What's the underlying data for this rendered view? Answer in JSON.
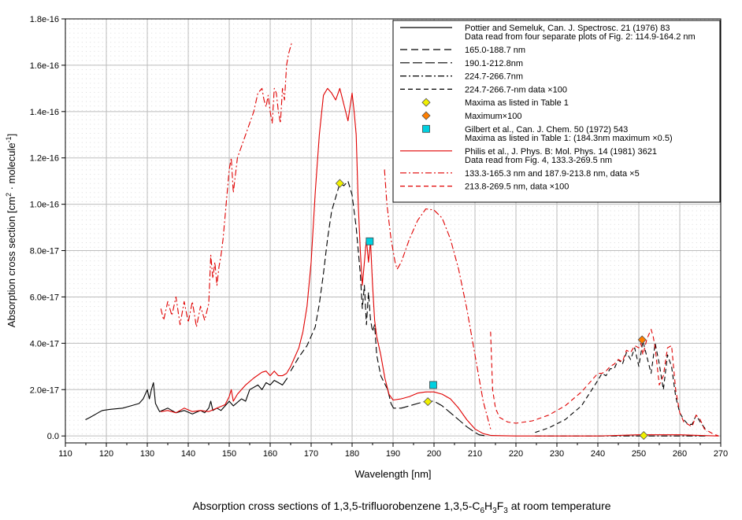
{
  "chart_data": {
    "type": "line",
    "caption": {
      "prefix": "Absorption cross sections of 1,3,5-trifluorobenzene 1,3,5-C",
      "sub1": "6",
      "mid1": "H",
      "sub2": "3",
      "mid2": "F",
      "sub3": "3",
      "suffix": " at room temperature"
    },
    "xlabel": "Wavelength [nm]",
    "ylabel": {
      "prefix": "Absorption cross section [cm",
      "sup1": "2",
      "mid": " · molecule",
      "sup2": "-1",
      "suffix": "]"
    },
    "xlim": [
      110,
      270
    ],
    "ylim": [
      -3e-18,
      1.8e-16
    ],
    "x_ticks": [
      110,
      120,
      130,
      140,
      150,
      160,
      170,
      180,
      190,
      200,
      210,
      220,
      230,
      240,
      250,
      260,
      270
    ],
    "y_ticks": [
      {
        "value": 0,
        "label": "0.0"
      },
      {
        "value": 2e-17,
        "label": "2.0e-17"
      },
      {
        "value": 4e-17,
        "label": "4.0e-17"
      },
      {
        "value": 6e-17,
        "label": "6.0e-17"
      },
      {
        "value": 8e-17,
        "label": "8.0e-17"
      },
      {
        "value": 1e-16,
        "label": "1.0e-16"
      },
      {
        "value": 1.2e-16,
        "label": "1.2e-16"
      },
      {
        "value": 1.4e-16,
        "label": "1.4e-16"
      },
      {
        "value": 1.6e-16,
        "label": "1.6e-16"
      },
      {
        "value": 1.8e-16,
        "label": "1.8e-16"
      }
    ],
    "grid": true,
    "legend": [
      {
        "type": "line",
        "color": "#000000",
        "dash": "",
        "lines": [
          "Pottier and Semeluk, Can. J. Spectrosc. 21 (1976) 83",
          "Data read from four separate plots of Fig. 2: 114.9-164.2 nm"
        ]
      },
      {
        "type": "line",
        "color": "#000000",
        "dash": "9,5",
        "lines": [
          "165.0-188.7 nm"
        ]
      },
      {
        "type": "line",
        "color": "#000000",
        "dash": "12,4",
        "lines": [
          "190.1-212.8nm"
        ]
      },
      {
        "type": "line",
        "color": "#000000",
        "dash": "8,3,2,3",
        "lines": [
          "224.7-266.7nm"
        ]
      },
      {
        "type": "line",
        "color": "#000000",
        "dash": "6,4",
        "lines": [
          "224.7-266.7-nm data ×100"
        ]
      },
      {
        "type": "marker",
        "color": "#f0f000",
        "shape": "diamond",
        "lines": [
          "Maxima as listed in Table 1"
        ]
      },
      {
        "type": "marker",
        "color": "#ff7f00",
        "shape": "diamond",
        "lines": [
          "Maximum×100"
        ]
      },
      {
        "type": "marker",
        "color": "#00d0e0",
        "shape": "square",
        "lines": [
          "Gilbert et al., Can. J. Chem. 50 (1972) 543",
          "Maxima as listed in Table 1: (184.3nm maximum ×0.5)"
        ]
      },
      {
        "type": "line",
        "color": "#e00000",
        "dash": "",
        "lines": [
          "Philis et al., J. Phys. B: Mol. Phys. 14 (1981) 3621",
          "Data read from Fig. 4, 133.3-269.5 nm"
        ]
      },
      {
        "type": "line",
        "color": "#e00000",
        "dash": "8,3,2,3",
        "lines": [
          "133.3-165.3 nm and 187.9-213.8 nm, data ×5"
        ]
      },
      {
        "type": "line",
        "color": "#e00000",
        "dash": "6,4",
        "lines": [
          "213.8-269.5 nm, data ×100"
        ]
      }
    ],
    "series": [
      {
        "name": "Pottier 114.9-164.2 nm",
        "color": "#000000",
        "dash": "",
        "unit": 1e-17,
        "x": [
          114.9,
          116,
          118,
          119,
          121,
          124,
          126,
          128,
          129,
          130,
          130.5,
          131,
          131.5,
          132,
          133,
          135,
          137,
          139,
          141,
          143,
          144,
          145,
          145.5,
          146,
          147,
          148,
          149,
          150,
          151,
          153,
          154,
          155,
          157,
          158,
          159,
          160,
          161,
          162,
          163,
          164.2
        ],
        "y": [
          0.7,
          0.8,
          1.0,
          1.1,
          1.15,
          1.2,
          1.3,
          1.4,
          1.6,
          2.0,
          1.6,
          2.0,
          2.3,
          1.4,
          1.05,
          1.2,
          1.0,
          1.1,
          0.95,
          1.1,
          1.0,
          1.2,
          1.5,
          1.1,
          1.2,
          1.1,
          1.3,
          1.5,
          1.3,
          1.6,
          1.5,
          2.0,
          2.2,
          2.0,
          2.3,
          2.2,
          2.4,
          2.3,
          2.2,
          2.5
        ]
      },
      {
        "name": "Pottier 165.0-188.7 nm",
        "color": "#000000",
        "dash": "8,4",
        "unit": 1e-17,
        "x": [
          165,
          167,
          169,
          171,
          172,
          173,
          174,
          175,
          176,
          177,
          178,
          179,
          180,
          181,
          182,
          182.5,
          183,
          183.5,
          184,
          184.5,
          185,
          185.5,
          186,
          187,
          188.7
        ],
        "y": [
          2.8,
          3.4,
          3.9,
          4.7,
          5.7,
          7.0,
          8.5,
          9.7,
          10.3,
          10.9,
          10.8,
          11.0,
          10.4,
          9.0,
          7.0,
          5.5,
          6.5,
          4.8,
          6.2,
          5.0,
          4.5,
          4.8,
          3.5,
          2.6,
          2.0
        ]
      },
      {
        "name": "Pottier 190.1-212.8 nm",
        "color": "#000000",
        "dash": "12,4",
        "unit": 1e-17,
        "x": [
          188.7,
          189.5,
          190.1,
          192,
          194,
          196,
          198,
          200,
          202,
          204,
          206,
          208,
          210,
          211,
          212.8
        ],
        "y": [
          2.0,
          1.4,
          1.2,
          1.2,
          1.3,
          1.4,
          1.5,
          1.5,
          1.3,
          1.0,
          0.7,
          0.4,
          0.15,
          0.05,
          0.0
        ]
      },
      {
        "name": "Pottier 224.7-266.7 nm ×100",
        "color": "#000000",
        "dash": "6,4",
        "unit": 1e-17,
        "x": [
          224.7,
          228,
          232,
          236,
          240,
          241,
          242,
          243,
          244,
          245,
          246,
          247,
          248,
          249,
          250,
          251,
          252,
          253,
          254,
          255,
          256,
          257,
          258,
          259,
          260,
          261,
          262,
          263,
          264,
          265,
          266.7
        ],
        "y": [
          0.15,
          0.35,
          0.7,
          1.3,
          2.4,
          2.7,
          2.6,
          2.9,
          2.9,
          3.3,
          3.1,
          3.6,
          3.3,
          3.8,
          3.0,
          4.1,
          3.4,
          2.7,
          4.0,
          3.1,
          2.0,
          3.5,
          3.0,
          1.7,
          1.0,
          0.7,
          0.5,
          0.5,
          0.9,
          0.6,
          0.2
        ]
      },
      {
        "name": "Pottier 224.7-266.7 nm",
        "color": "#000000",
        "dash": "8,3,2,3",
        "unit": 1e-17,
        "x": [
          224.7,
          240,
          250,
          260,
          266.7
        ],
        "y": [
          0,
          0,
          0,
          0,
          0
        ]
      },
      {
        "name": "Philis 133.3-269.5 nm",
        "color": "#e00000",
        "dash": "",
        "unit": 1e-17,
        "x": [
          133.3,
          135,
          137,
          139,
          141,
          143,
          145,
          147,
          149,
          150,
          150.5,
          151,
          152,
          154,
          156,
          158,
          159,
          160,
          161,
          162,
          163,
          164,
          165,
          166,
          167,
          168,
          169,
          170,
          171,
          172,
          173,
          174,
          175,
          176,
          177,
          178,
          179,
          180,
          180.5,
          181,
          181.5,
          182,
          182.5,
          183,
          183.5,
          184,
          184.5,
          185,
          185.5,
          186,
          187,
          188,
          189,
          190,
          192,
          194,
          196,
          198,
          200,
          202,
          204,
          206,
          208,
          210,
          212,
          214,
          220,
          230,
          240,
          250,
          260,
          269.5
        ],
        "y": [
          1.05,
          1.1,
          1.0,
          1.2,
          1.05,
          1.1,
          1.05,
          1.2,
          1.35,
          1.7,
          2.0,
          1.5,
          1.8,
          2.2,
          2.5,
          2.75,
          2.8,
          2.6,
          2.8,
          2.6,
          2.6,
          2.7,
          3.0,
          3.4,
          3.8,
          4.5,
          5.6,
          7.5,
          10.5,
          13.0,
          14.7,
          15.0,
          14.8,
          14.5,
          15.0,
          14.3,
          13.6,
          14.8,
          14.0,
          13.0,
          10.0,
          8.0,
          6.5,
          7.5,
          8.5,
          7.5,
          8.4,
          6.5,
          5.0,
          4.3,
          3.5,
          2.5,
          1.8,
          1.55,
          1.6,
          1.7,
          1.85,
          1.9,
          1.9,
          1.8,
          1.6,
          1.2,
          0.7,
          0.3,
          0.1,
          0.02,
          0.0,
          0.0,
          0.0,
          0.05,
          0.05,
          0.0
        ]
      },
      {
        "name": "Philis ×5 133.3-165.3 nm",
        "color": "#e00000",
        "dash": "8,3,2,3",
        "unit": 1e-17,
        "x": [
          133.3,
          134,
          135,
          136,
          137,
          138,
          139,
          140,
          141,
          142,
          143,
          144,
          145,
          145.5,
          146,
          146.5,
          147,
          147.5,
          148,
          148.5,
          149,
          149.5,
          150,
          150.5,
          151,
          152,
          153,
          154,
          155,
          156,
          157,
          158,
          158.5,
          159,
          159.5,
          160,
          160.5,
          161,
          161.5,
          162,
          162.5,
          163,
          163.5,
          164,
          164.5,
          165.3
        ],
        "y": [
          5.5,
          5.0,
          5.8,
          5.2,
          6.0,
          4.8,
          5.8,
          4.9,
          5.8,
          4.7,
          5.6,
          5.0,
          5.7,
          7.8,
          6.8,
          7.5,
          6.5,
          7.3,
          7.8,
          8.5,
          9.5,
          10.5,
          11.5,
          12.0,
          10.5,
          12.0,
          12.5,
          13.0,
          13.5,
          14.0,
          14.8,
          15.0,
          14.5,
          14.2,
          14.7,
          14.0,
          13.5,
          15.0,
          14.8,
          14.0,
          13.5,
          15.0,
          14.5,
          16.0,
          16.5,
          17.0
        ]
      },
      {
        "name": "Philis ×5 187.9-213.8 nm",
        "color": "#e00000",
        "dash": "8,3,2,3",
        "unit": 1e-17,
        "x": [
          187.9,
          188.5,
          189.5,
          190.5,
          191,
          192,
          194,
          196,
          198,
          200,
          202,
          204,
          206,
          208,
          210,
          212,
          213.8
        ],
        "y": [
          11.5,
          10.0,
          8.5,
          7.5,
          7.2,
          7.5,
          8.5,
          9.3,
          9.8,
          9.75,
          9.4,
          8.5,
          7.2,
          5.5,
          3.5,
          1.5,
          0.3
        ]
      },
      {
        "name": "Philis ×100 213.8-269.5 nm",
        "color": "#e00000",
        "dash": "6,4",
        "unit": 1e-17,
        "x": [
          213.8,
          214.3,
          215,
          216,
          218,
          220,
          224,
          228,
          232,
          236,
          240,
          241,
          242,
          243,
          244,
          245,
          246,
          247,
          248,
          249,
          250,
          250.5,
          251,
          252,
          253,
          253.5,
          254,
          255,
          256,
          257,
          258,
          259,
          260,
          261,
          262,
          263,
          264,
          265,
          266,
          268,
          269.5
        ],
        "y": [
          4.5,
          2.0,
          1.2,
          0.8,
          0.6,
          0.55,
          0.65,
          0.9,
          1.3,
          1.9,
          2.7,
          2.7,
          2.8,
          3.0,
          3.1,
          3.3,
          3.2,
          3.7,
          3.6,
          3.9,
          3.8,
          4.0,
          3.5,
          4.2,
          4.6,
          4.3,
          3.8,
          2.2,
          2.6,
          3.8,
          3.9,
          2.0,
          1.0,
          0.6,
          0.5,
          0.4,
          0.9,
          0.7,
          0.3,
          0.1,
          0.0
        ]
      }
    ],
    "markers": [
      {
        "series": "Maxima as listed in Table 1",
        "shape": "diamond",
        "color": "#f0f000",
        "points": [
          [
            177.0,
            10.9
          ],
          [
            198.5,
            1.48
          ],
          [
            251.2,
            0.02
          ]
        ]
      },
      {
        "series": "Maximum×100",
        "shape": "diamond",
        "color": "#ff7f00",
        "points": [
          [
            250.8,
            4.15
          ]
        ]
      },
      {
        "series": "Gilbert et al.",
        "shape": "square",
        "color": "#00d0e0",
        "points": [
          [
            184.3,
            8.4
          ],
          [
            199.8,
            2.2
          ]
        ]
      }
    ]
  }
}
